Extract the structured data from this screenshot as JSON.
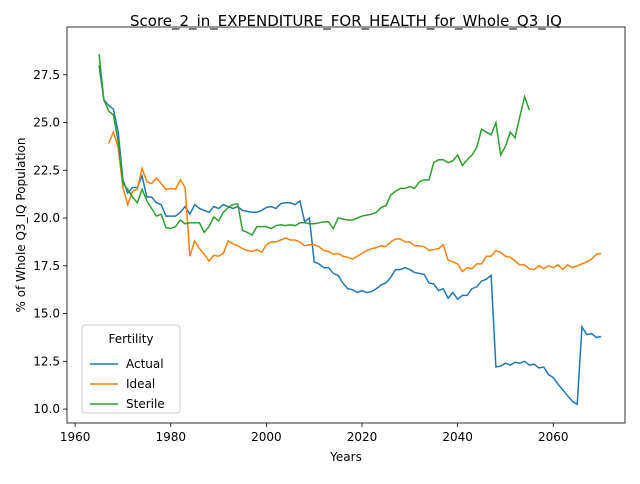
{
  "chart_data": {
    "type": "line",
    "title": "Score_2_in_EXPENDITURE_FOR_HEALTH_for_Whole_Q3_IQ",
    "xlabel": "Years",
    "ylabel": "% of Whole Q3_IQ Population",
    "legend_title": "Fertility",
    "legend": "lower left",
    "xlim": [
      1958.3,
      2075
    ],
    "ylim": [
      9.27,
      30.0
    ],
    "xticks": [
      1960,
      1980,
      2000,
      2020,
      2040,
      2060
    ],
    "yticks": [
      {
        "value": 10,
        "label": "10.0"
      },
      {
        "value": 12.5,
        "label": "12.5"
      },
      {
        "value": 15,
        "label": "15.0"
      },
      {
        "value": 17.5,
        "label": "17.5"
      },
      {
        "value": 20,
        "label": "20.0"
      },
      {
        "value": 22.5,
        "label": "22.5"
      },
      {
        "value": 25,
        "label": "25.0"
      },
      {
        "value": 27.5,
        "label": "27.5"
      }
    ],
    "series": [
      {
        "name": "Actual",
        "color": "#1f77b4",
        "x": [
          1965,
          1966,
          1967,
          1968,
          1969,
          1970,
          1971,
          1972,
          1973,
          1974,
          1975,
          1976,
          1977,
          1978,
          1979,
          1980,
          1981,
          1982,
          1983,
          1984,
          1985,
          1986,
          1987,
          1988,
          1989,
          1990,
          1991,
          1992,
          1993,
          1994,
          1995,
          1996,
          1997,
          1998,
          1999,
          2000,
          2001,
          2002,
          2003,
          2004,
          2005,
          2006,
          2007,
          2008,
          2009,
          2010,
          2011,
          2012,
          2013,
          2014,
          2015,
          2016,
          2017,
          2018,
          2019,
          2020,
          2021,
          2022,
          2023,
          2024,
          2025,
          2026,
          2027,
          2028,
          2029,
          2030,
          2031,
          2032,
          2033,
          2034,
          2035,
          2036,
          2037,
          2038,
          2039,
          2040,
          2041,
          2042,
          2043,
          2044,
          2045,
          2046,
          2047,
          2048,
          2049,
          2050,
          2051,
          2052,
          2053,
          2054,
          2055,
          2056,
          2057,
          2058,
          2059,
          2060,
          2061,
          2062,
          2063,
          2064,
          2065,
          2066,
          2067,
          2068,
          2069,
          2070
        ],
        "values": [
          28.0,
          26.2,
          25.9,
          25.7,
          24.5,
          22.0,
          21.3,
          21.6,
          21.6,
          22.2,
          21.1,
          21.1,
          20.8,
          20.7,
          20.1,
          20.1,
          20.1,
          20.3,
          20.6,
          20.2,
          20.7,
          20.5,
          20.4,
          20.3,
          20.6,
          20.5,
          20.7,
          20.6,
          20.5,
          20.6,
          20.4,
          20.35,
          20.3,
          20.3,
          20.4,
          20.55,
          20.6,
          20.5,
          20.75,
          20.8,
          20.8,
          20.7,
          20.9,
          19.8,
          20.0,
          17.7,
          17.6,
          17.4,
          17.4,
          17.1,
          17.0,
          16.6,
          16.3,
          16.25,
          16.1,
          16.2,
          16.1,
          16.15,
          16.3,
          16.5,
          16.6,
          16.9,
          17.3,
          17.3,
          17.4,
          17.3,
          17.15,
          17.1,
          17.05,
          16.6,
          16.55,
          16.2,
          16.3,
          15.8,
          16.1,
          15.75,
          15.95,
          15.95,
          16.3,
          16.4,
          16.7,
          16.8,
          17.0,
          12.2,
          12.25,
          12.4,
          12.3,
          12.45,
          12.4,
          12.5,
          12.3,
          12.35,
          12.15,
          12.2,
          11.8,
          11.65,
          11.3,
          11.0,
          10.7,
          10.4,
          10.25,
          14.3,
          13.9,
          13.95,
          13.75,
          13.8
        ]
      },
      {
        "name": "Ideal",
        "color": "#ff7f0e",
        "x": [
          1967,
          1968,
          1969,
          1970,
          1971,
          1972,
          1973,
          1974,
          1975,
          1976,
          1977,
          1978,
          1979,
          1980,
          1981,
          1982,
          1983,
          1984,
          1985,
          1986,
          1987,
          1988,
          1989,
          1990,
          1991,
          1992,
          1993,
          1994,
          1995,
          1996,
          1997,
          1998,
          1999,
          2000,
          2001,
          2002,
          2003,
          2004,
          2005,
          2006,
          2007,
          2008,
          2009,
          2010,
          2011,
          2012,
          2013,
          2014,
          2015,
          2016,
          2017,
          2018,
          2019,
          2020,
          2021,
          2022,
          2023,
          2024,
          2025,
          2026,
          2027,
          2028,
          2029,
          2030,
          2031,
          2032,
          2033,
          2034,
          2035,
          2036,
          2037,
          2038,
          2039,
          2040,
          2041,
          2042,
          2043,
          2044,
          2045,
          2046,
          2047,
          2048,
          2049,
          2050,
          2051,
          2052,
          2053,
          2054,
          2055,
          2056,
          2057,
          2058,
          2059,
          2060,
          2061,
          2062,
          2063,
          2064,
          2065,
          2066,
          2067,
          2068,
          2069,
          2070
        ],
        "values": [
          23.9,
          24.5,
          23.7,
          21.6,
          20.7,
          21.4,
          21.5,
          22.6,
          21.9,
          21.8,
          22.1,
          21.8,
          21.5,
          21.55,
          21.5,
          22.0,
          21.6,
          18.0,
          18.8,
          18.4,
          18.1,
          17.75,
          18.05,
          18.0,
          18.15,
          18.8,
          18.65,
          18.55,
          18.4,
          18.3,
          18.25,
          18.35,
          18.2,
          18.6,
          18.75,
          18.75,
          18.85,
          18.95,
          18.85,
          18.85,
          18.75,
          18.55,
          18.6,
          18.6,
          18.5,
          18.3,
          18.25,
          18.1,
          18.15,
          18.0,
          17.95,
          17.85,
          18.0,
          18.15,
          18.3,
          18.4,
          18.45,
          18.55,
          18.5,
          18.75,
          18.9,
          18.9,
          18.75,
          18.75,
          18.55,
          18.55,
          18.5,
          18.3,
          18.35,
          18.4,
          18.6,
          17.8,
          17.7,
          17.6,
          17.2,
          17.4,
          17.35,
          17.6,
          17.6,
          18.0,
          18.0,
          18.3,
          18.2,
          18.0,
          17.95,
          17.75,
          17.55,
          17.55,
          17.35,
          17.3,
          17.5,
          17.35,
          17.5,
          17.4,
          17.55,
          17.3,
          17.55,
          17.4,
          17.5,
          17.6,
          17.7,
          17.85,
          18.1,
          18.15
        ]
      },
      {
        "name": "Sterile",
        "color": "#2ca02c",
        "x": [
          1965,
          1966,
          1967,
          1968,
          1969,
          1970,
          1971,
          1972,
          1973,
          1974,
          1975,
          1976,
          1977,
          1978,
          1979,
          1980,
          1981,
          1982,
          1983,
          1984,
          1985,
          1986,
          1987,
          1988,
          1989,
          1990,
          1991,
          1992,
          1993,
          1994,
          1995,
          1996,
          1997,
          1998,
          1999,
          2000,
          2001,
          2002,
          2003,
          2004,
          2005,
          2006,
          2007,
          2008,
          2009,
          2010,
          2011,
          2012,
          2013,
          2014,
          2015,
          2016,
          2017,
          2018,
          2019,
          2020,
          2021,
          2022,
          2023,
          2024,
          2025,
          2026,
          2027,
          2028,
          2029,
          2030,
          2031,
          2032,
          2033,
          2034,
          2035,
          2036,
          2037,
          2038,
          2039,
          2040,
          2041,
          2042,
          2043,
          2044,
          2045,
          2046,
          2047,
          2048,
          2049,
          2050,
          2051,
          2052,
          2053,
          2054,
          2055
        ],
        "values": [
          28.6,
          26.2,
          25.6,
          25.4,
          24.0,
          21.8,
          21.5,
          21.1,
          20.8,
          21.5,
          20.9,
          20.5,
          20.1,
          20.2,
          19.5,
          19.45,
          19.55,
          19.9,
          19.7,
          19.75,
          19.75,
          19.75,
          19.25,
          19.55,
          20.05,
          19.85,
          20.3,
          20.55,
          20.7,
          20.75,
          19.35,
          19.25,
          19.1,
          19.55,
          19.55,
          19.55,
          19.45,
          19.6,
          19.65,
          19.6,
          19.65,
          19.6,
          19.75,
          19.75,
          19.7,
          19.7,
          19.75,
          19.8,
          19.8,
          19.45,
          20.0,
          19.95,
          19.9,
          19.9,
          20.0,
          20.1,
          20.15,
          20.2,
          20.3,
          20.55,
          20.65,
          21.2,
          21.4,
          21.55,
          21.55,
          21.65,
          21.55,
          21.9,
          22.0,
          22.0,
          22.9,
          23.05,
          23.05,
          22.9,
          23.0,
          23.3,
          22.75,
          23.05,
          23.3,
          23.7,
          24.65,
          24.5,
          24.35,
          25.0,
          23.3,
          23.75,
          24.5,
          24.2,
          25.3,
          26.35,
          25.65
        ]
      }
    ]
  }
}
